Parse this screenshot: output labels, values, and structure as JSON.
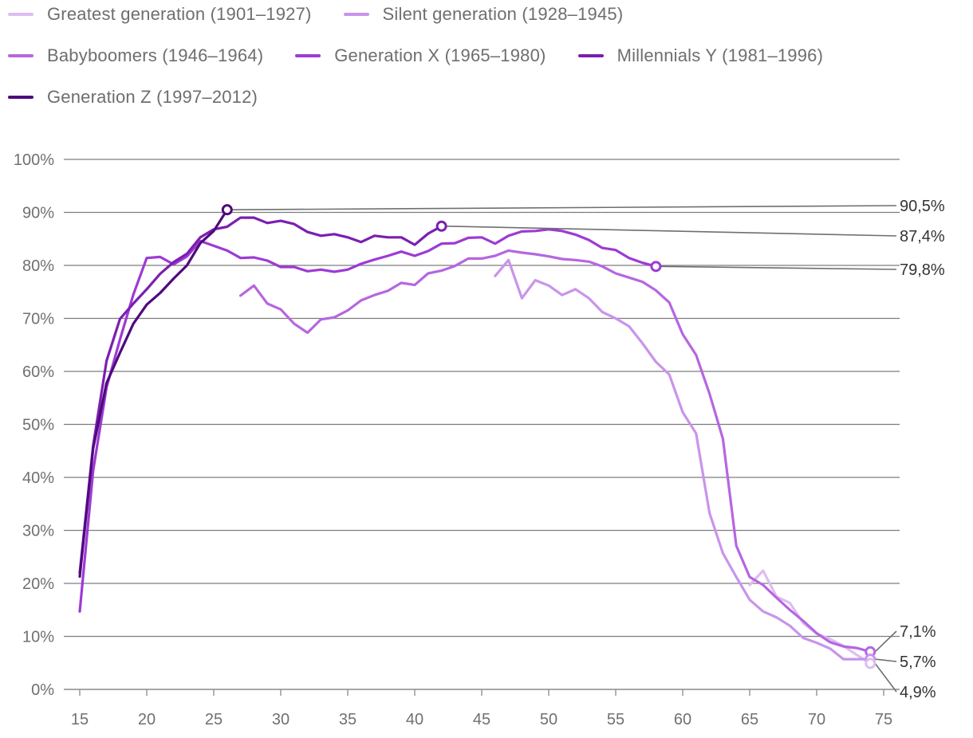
{
  "chart_data": {
    "type": "line",
    "title": "",
    "xlabel": "",
    "ylabel": "",
    "xlim": [
      15,
      75
    ],
    "ylim": [
      0,
      100
    ],
    "x_ticks": [
      "15",
      "20",
      "25",
      "30",
      "35",
      "40",
      "45",
      "50",
      "55",
      "60",
      "65",
      "70",
      "75"
    ],
    "y_ticks": [
      "0%",
      "10%",
      "20%",
      "30%",
      "40%",
      "50%",
      "60%",
      "70%",
      "80%",
      "90%",
      "100%"
    ],
    "grid": "horizontal",
    "legend_position": "top-left",
    "series": [
      {
        "name": "Greatest generation (1901–1927)",
        "color": "#dcbef2",
        "points": [
          [
            65,
            19.7
          ],
          [
            66,
            22.4
          ],
          [
            67,
            17.5
          ],
          [
            68,
            16.3
          ],
          [
            69,
            12.5
          ],
          [
            70,
            10.5
          ],
          [
            71,
            9.5
          ],
          [
            72,
            8.2
          ],
          [
            73,
            6.5
          ],
          [
            74,
            4.9
          ]
        ]
      },
      {
        "name": "Silent generation (1928–1945)",
        "color": "#c994ea",
        "points": [
          [
            46,
            78.0
          ],
          [
            47,
            81.0
          ],
          [
            48,
            73.8
          ],
          [
            49,
            77.2
          ],
          [
            50,
            76.2
          ],
          [
            51,
            74.4
          ],
          [
            52,
            75.5
          ],
          [
            53,
            73.8
          ],
          [
            54,
            71.2
          ],
          [
            55,
            70.0
          ],
          [
            56,
            68.5
          ],
          [
            57,
            65.3
          ],
          [
            58,
            61.8
          ],
          [
            59,
            59.4
          ],
          [
            60,
            52.3
          ],
          [
            61,
            48.3
          ],
          [
            62,
            33.3
          ],
          [
            63,
            25.7
          ],
          [
            64,
            21.2
          ],
          [
            65,
            16.9
          ],
          [
            66,
            14.7
          ],
          [
            67,
            13.6
          ],
          [
            68,
            12.0
          ],
          [
            69,
            9.7
          ],
          [
            70,
            8.8
          ],
          [
            71,
            7.7
          ],
          [
            72,
            5.7
          ],
          [
            73,
            5.7
          ],
          [
            74,
            5.7
          ]
        ]
      },
      {
        "name": "Babyboomers (1946–1964)",
        "color": "#b666e0",
        "points": [
          [
            27,
            74.3
          ],
          [
            28,
            76.2
          ],
          [
            29,
            72.8
          ],
          [
            30,
            71.7
          ],
          [
            31,
            69.0
          ],
          [
            32,
            67.3
          ],
          [
            33,
            69.8
          ],
          [
            34,
            70.2
          ],
          [
            35,
            71.5
          ],
          [
            36,
            73.4
          ],
          [
            37,
            74.4
          ],
          [
            38,
            75.2
          ],
          [
            39,
            76.7
          ],
          [
            40,
            76.3
          ],
          [
            41,
            78.5
          ],
          [
            42,
            79.0
          ],
          [
            43,
            79.9
          ],
          [
            44,
            81.3
          ],
          [
            45,
            81.3
          ],
          [
            46,
            81.8
          ],
          [
            47,
            82.8
          ],
          [
            48,
            82.4
          ],
          [
            49,
            82.1
          ],
          [
            50,
            81.7
          ],
          [
            51,
            81.2
          ],
          [
            52,
            81.0
          ],
          [
            53,
            80.7
          ],
          [
            54,
            79.8
          ],
          [
            55,
            78.5
          ],
          [
            56,
            77.7
          ],
          [
            57,
            76.9
          ],
          [
            58,
            75.3
          ],
          [
            59,
            73.0
          ],
          [
            60,
            67.0
          ],
          [
            61,
            63.1
          ],
          [
            62,
            55.8
          ],
          [
            63,
            47.3
          ],
          [
            64,
            27.1
          ],
          [
            65,
            21.2
          ],
          [
            66,
            19.7
          ],
          [
            67,
            17.3
          ],
          [
            68,
            15.0
          ],
          [
            69,
            12.9
          ],
          [
            70,
            10.6
          ],
          [
            71,
            8.9
          ],
          [
            72,
            8.1
          ],
          [
            73,
            7.8
          ],
          [
            74,
            7.1
          ]
        ]
      },
      {
        "name": "Generation X (1965–1980)",
        "color": "#9d3ad4",
        "points": [
          [
            15,
            14.7
          ],
          [
            16,
            41.3
          ],
          [
            17,
            57.0
          ],
          [
            18,
            66.0
          ],
          [
            19,
            74.5
          ],
          [
            20,
            81.4
          ],
          [
            21,
            81.6
          ],
          [
            22,
            80.2
          ],
          [
            23,
            81.7
          ],
          [
            24,
            84.6
          ],
          [
            25,
            83.7
          ],
          [
            26,
            82.8
          ],
          [
            27,
            81.4
          ],
          [
            28,
            81.5
          ],
          [
            29,
            80.9
          ],
          [
            30,
            79.7
          ],
          [
            31,
            79.7
          ],
          [
            32,
            78.9
          ],
          [
            33,
            79.2
          ],
          [
            34,
            78.8
          ],
          [
            35,
            79.2
          ],
          [
            36,
            80.3
          ],
          [
            37,
            81.1
          ],
          [
            38,
            81.8
          ],
          [
            39,
            82.6
          ],
          [
            40,
            81.8
          ],
          [
            41,
            82.7
          ],
          [
            42,
            84.1
          ],
          [
            43,
            84.2
          ],
          [
            44,
            85.2
          ],
          [
            45,
            85.3
          ],
          [
            46,
            84.1
          ],
          [
            47,
            85.6
          ],
          [
            48,
            86.4
          ],
          [
            49,
            86.5
          ],
          [
            50,
            86.8
          ],
          [
            51,
            86.5
          ],
          [
            52,
            85.8
          ],
          [
            53,
            84.8
          ],
          [
            54,
            83.3
          ],
          [
            55,
            82.9
          ],
          [
            56,
            81.4
          ],
          [
            57,
            80.5
          ],
          [
            58,
            79.8
          ]
        ]
      },
      {
        "name": "Millennials Y (1981–1996)",
        "color": "#7b1fb0",
        "points": [
          [
            15,
            22.0
          ],
          [
            16,
            46.0
          ],
          [
            17,
            62.0
          ],
          [
            18,
            69.9
          ],
          [
            19,
            72.8
          ],
          [
            20,
            75.5
          ],
          [
            21,
            78.4
          ],
          [
            22,
            80.6
          ],
          [
            23,
            82.2
          ],
          [
            24,
            85.3
          ],
          [
            25,
            86.8
          ],
          [
            26,
            87.3
          ],
          [
            27,
            89.0
          ],
          [
            28,
            89.0
          ],
          [
            29,
            88.0
          ],
          [
            30,
            88.4
          ],
          [
            31,
            87.8
          ],
          [
            32,
            86.3
          ],
          [
            33,
            85.6
          ],
          [
            34,
            85.9
          ],
          [
            35,
            85.3
          ],
          [
            36,
            84.4
          ],
          [
            37,
            85.6
          ],
          [
            38,
            85.3
          ],
          [
            39,
            85.3
          ],
          [
            40,
            83.9
          ],
          [
            41,
            86.0
          ],
          [
            42,
            87.4
          ]
        ]
      },
      {
        "name": "Generation Z (1997–2012)",
        "color": "#4f0a7e",
        "points": [
          [
            15,
            21.3
          ],
          [
            16,
            45.5
          ],
          [
            17,
            57.8
          ],
          [
            18,
            63.5
          ],
          [
            19,
            69.0
          ],
          [
            20,
            72.6
          ],
          [
            21,
            74.8
          ],
          [
            22,
            77.5
          ],
          [
            23,
            80.0
          ],
          [
            24,
            84.2
          ],
          [
            25,
            86.5
          ],
          [
            26,
            90.5
          ]
        ]
      }
    ],
    "end_labels": [
      {
        "series": "Generation Z (1997–2012)",
        "x": 26,
        "value": 90.5,
        "text": "90,5%"
      },
      {
        "series": "Millennials Y (1981–1996)",
        "x": 42,
        "value": 87.4,
        "text": "87,4%"
      },
      {
        "series": "Generation X (1965–1980)",
        "x": 58,
        "value": 79.8,
        "text": "79,8%"
      },
      {
        "series": "Babyboomers (1946–1964)",
        "x": 74,
        "value": 7.1,
        "text": "7,1%"
      },
      {
        "series": "Silent generation (1928–1945)",
        "x": 74,
        "value": 5.7,
        "text": "5,7%"
      },
      {
        "series": "Greatest generation (1901–1927)",
        "x": 74,
        "value": 4.9,
        "text": "4,9%"
      }
    ]
  }
}
